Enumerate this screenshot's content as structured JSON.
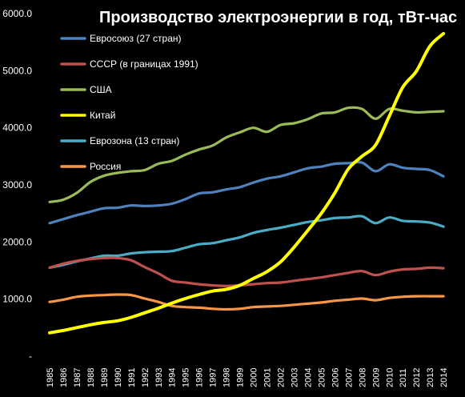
{
  "chart_data": {
    "type": "line",
    "title": "Производство электроэнергии в год, тВт-час",
    "xlabel": "",
    "ylabel": "",
    "ylim": [
      0,
      6000
    ],
    "y_ticks": [
      "6000.0",
      "5000.0",
      "4000.0",
      "3000.0",
      "2000.0",
      "1000.0",
      "-"
    ],
    "grid": false,
    "legend_position": "top-left",
    "categories": [
      "1985",
      "1986",
      "1987",
      "1988",
      "1989",
      "1990",
      "1991",
      "1992",
      "1993",
      "1994",
      "1995",
      "1996",
      "1997",
      "1998",
      "1999",
      "2000",
      "2001",
      "2002",
      "2003",
      "2004",
      "2005",
      "2006",
      "2007",
      "2008",
      "2009",
      "2010",
      "2011",
      "2012",
      "2013",
      "2014"
    ],
    "series": [
      {
        "name": "Евросоюз (27 стран)",
        "color": "#4f81bd",
        "values": [
          2330,
          2400,
          2470,
          2530,
          2590,
          2600,
          2640,
          2630,
          2640,
          2670,
          2750,
          2850,
          2870,
          2920,
          2960,
          3040,
          3110,
          3150,
          3220,
          3290,
          3320,
          3370,
          3380,
          3390,
          3240,
          3360,
          3300,
          3280,
          3260,
          3150
        ]
      },
      {
        "name": "СССР (в границах 1991)",
        "color": "#c0504d",
        "values": [
          1550,
          1620,
          1670,
          1700,
          1720,
          1720,
          1680,
          1560,
          1450,
          1320,
          1290,
          1260,
          1240,
          1230,
          1240,
          1260,
          1280,
          1290,
          1320,
          1350,
          1380,
          1420,
          1460,
          1490,
          1420,
          1480,
          1520,
          1530,
          1550,
          1540
        ]
      },
      {
        "name": "США",
        "color": "#9bbb59",
        "values": [
          2700,
          2740,
          2860,
          3050,
          3160,
          3210,
          3240,
          3260,
          3370,
          3420,
          3530,
          3620,
          3690,
          3830,
          3920,
          4000,
          3930,
          4050,
          4080,
          4150,
          4250,
          4270,
          4350,
          4330,
          4160,
          4330,
          4300,
          4270,
          4280,
          4290
        ]
      },
      {
        "name": "Китай",
        "color": "#ffff00",
        "values": [
          410,
          450,
          500,
          550,
          590,
          620,
          680,
          760,
          840,
          930,
          1010,
          1080,
          1140,
          1170,
          1240,
          1360,
          1480,
          1650,
          1910,
          2200,
          2500,
          2860,
          3280,
          3500,
          3700,
          4200,
          4710,
          4990,
          5430,
          5650
        ]
      },
      {
        "name": "Еврозона (13 стран)",
        "color": "#4bacc6",
        "values": [
          1550,
          1600,
          1660,
          1710,
          1760,
          1760,
          1800,
          1820,
          1830,
          1840,
          1900,
          1960,
          1980,
          2030,
          2080,
          2160,
          2210,
          2250,
          2300,
          2350,
          2380,
          2420,
          2430,
          2450,
          2330,
          2430,
          2370,
          2360,
          2340,
          2270
        ]
      },
      {
        "name": "Россия",
        "color": "#f79646",
        "values": [
          950,
          990,
          1040,
          1060,
          1070,
          1080,
          1070,
          1010,
          950,
          880,
          860,
          850,
          830,
          820,
          830,
          860,
          870,
          880,
          900,
          920,
          940,
          970,
          990,
          1010,
          980,
          1020,
          1040,
          1050,
          1050,
          1050
        ]
      }
    ]
  }
}
